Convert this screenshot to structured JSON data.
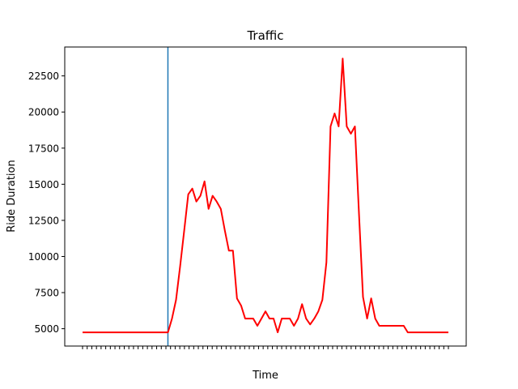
{
  "chart_data": {
    "type": "line",
    "title": "Traffic",
    "xlabel": "Time",
    "ylabel": "Ride Duration",
    "ylim": [
      3800,
      24500
    ],
    "yticks": [
      5000,
      7500,
      10000,
      12500,
      15000,
      17500,
      20000,
      22500
    ],
    "xtick_count": 80,
    "grid": false,
    "vline_index": 21,
    "colors": {
      "line": "#ff0000",
      "vline": "#1f77b4"
    },
    "series": [
      {
        "values": [
          4750,
          4750,
          4750,
          4750,
          4750,
          4750,
          4750,
          4750,
          4750,
          4750,
          4750,
          4750,
          4750,
          4750,
          4750,
          4750,
          4750,
          4750,
          4750,
          4750,
          4750,
          4750,
          5700,
          7000,
          9300,
          11800,
          14300,
          14700,
          13800,
          14200,
          15200,
          13300,
          14200,
          13800,
          13300,
          11800,
          10400,
          10400,
          7100,
          6600,
          5700,
          5700,
          5700,
          5200,
          5700,
          6200,
          5700,
          5700,
          4750,
          5700,
          5700,
          5700,
          5200,
          5700,
          6700,
          5700,
          5300,
          5700,
          6200,
          7000,
          9600,
          19000,
          19900,
          19000,
          23700,
          19000,
          18500,
          19000,
          13000,
          7200,
          5700,
          7100,
          5700,
          5200,
          5200,
          5200,
          5200,
          5200,
          5200,
          5200,
          4750,
          4750,
          4750,
          4750,
          4750,
          4750,
          4750,
          4750,
          4750,
          4750,
          4750
        ]
      }
    ]
  }
}
